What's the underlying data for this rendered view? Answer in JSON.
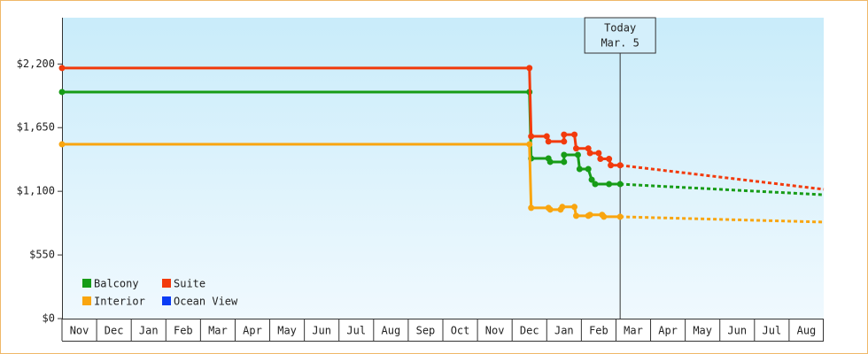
{
  "chart_data": {
    "type": "line",
    "xlim": [
      0,
      22
    ],
    "xticks": [
      {
        "value": 0,
        "label": "Nov"
      },
      {
        "value": 1,
        "label": "Dec"
      },
      {
        "value": 2,
        "label": "Jan"
      },
      {
        "value": 3,
        "label": "Feb"
      },
      {
        "value": 4,
        "label": "Mar"
      },
      {
        "value": 5,
        "label": "Apr"
      },
      {
        "value": 6,
        "label": "May"
      },
      {
        "value": 7,
        "label": "Jun"
      },
      {
        "value": 8,
        "label": "Jul"
      },
      {
        "value": 9,
        "label": "Aug"
      },
      {
        "value": 10,
        "label": "Sep"
      },
      {
        "value": 11,
        "label": "Oct"
      },
      {
        "value": 12,
        "label": "Nov"
      },
      {
        "value": 13,
        "label": "Dec"
      },
      {
        "value": 14,
        "label": "Jan"
      },
      {
        "value": 15,
        "label": "Feb"
      },
      {
        "value": 16,
        "label": "Mar"
      },
      {
        "value": 17,
        "label": "Apr"
      },
      {
        "value": 18,
        "label": "May"
      },
      {
        "value": 19,
        "label": "Jun"
      },
      {
        "value": 20,
        "label": "Jul"
      },
      {
        "value": 21,
        "label": "Aug"
      }
    ],
    "ylim": [
      0,
      2600
    ],
    "yticks": [
      {
        "value": 0,
        "label": "$0"
      },
      {
        "value": 550,
        "label": "$550"
      },
      {
        "value": 1100,
        "label": "$1,100"
      },
      {
        "value": 1650,
        "label": "$1,650"
      },
      {
        "value": 2200,
        "label": "$2,200"
      }
    ],
    "annotation": {
      "x": 16.12,
      "lines": [
        "Today",
        "Mar. 5"
      ]
    },
    "series": [
      {
        "name": "Balcony",
        "color": "#179c17",
        "x": [
          0,
          13.5,
          13.55,
          14.05,
          14.1,
          14.5,
          14.5,
          14.9,
          14.95,
          15.2,
          15.3,
          15.4,
          15.8,
          16.12
        ],
        "values": [
          1958,
          1958,
          1384,
          1384,
          1354,
          1354,
          1415,
          1415,
          1292,
          1292,
          1200,
          1162,
          1162,
          1162
        ],
        "forecast_x": [
          16.12,
          22
        ],
        "forecast_values": [
          1162,
          1070
        ]
      },
      {
        "name": "Suite",
        "color": "#f23a0c",
        "x": [
          0,
          13.5,
          13.55,
          14.0,
          14.05,
          14.5,
          14.5,
          14.8,
          14.85,
          15.2,
          15.25,
          15.5,
          15.55,
          15.8,
          15.85,
          16.12
        ],
        "values": [
          2165,
          2165,
          1575,
          1575,
          1530,
          1530,
          1590,
          1590,
          1470,
          1470,
          1430,
          1430,
          1380,
          1380,
          1325,
          1325
        ],
        "forecast_x": [
          16.12,
          22
        ],
        "forecast_values": [
          1325,
          1117
        ]
      },
      {
        "name": "Interior",
        "color": "#f9a50f",
        "x": [
          0,
          13.5,
          13.55,
          14.05,
          14.1,
          14.4,
          14.45,
          14.8,
          14.85,
          15.2,
          15.25,
          15.6,
          15.65,
          16.12
        ],
        "values": [
          1506,
          1506,
          957,
          957,
          942,
          942,
          965,
          965,
          888,
          888,
          897,
          897,
          880,
          880
        ],
        "forecast_x": [
          16.12,
          22
        ],
        "forecast_values": [
          880,
          834
        ]
      },
      {
        "name": "Ocean View",
        "color": "#0a3cf5",
        "x": [],
        "values": [],
        "forecast_x": [],
        "forecast_values": []
      }
    ]
  }
}
